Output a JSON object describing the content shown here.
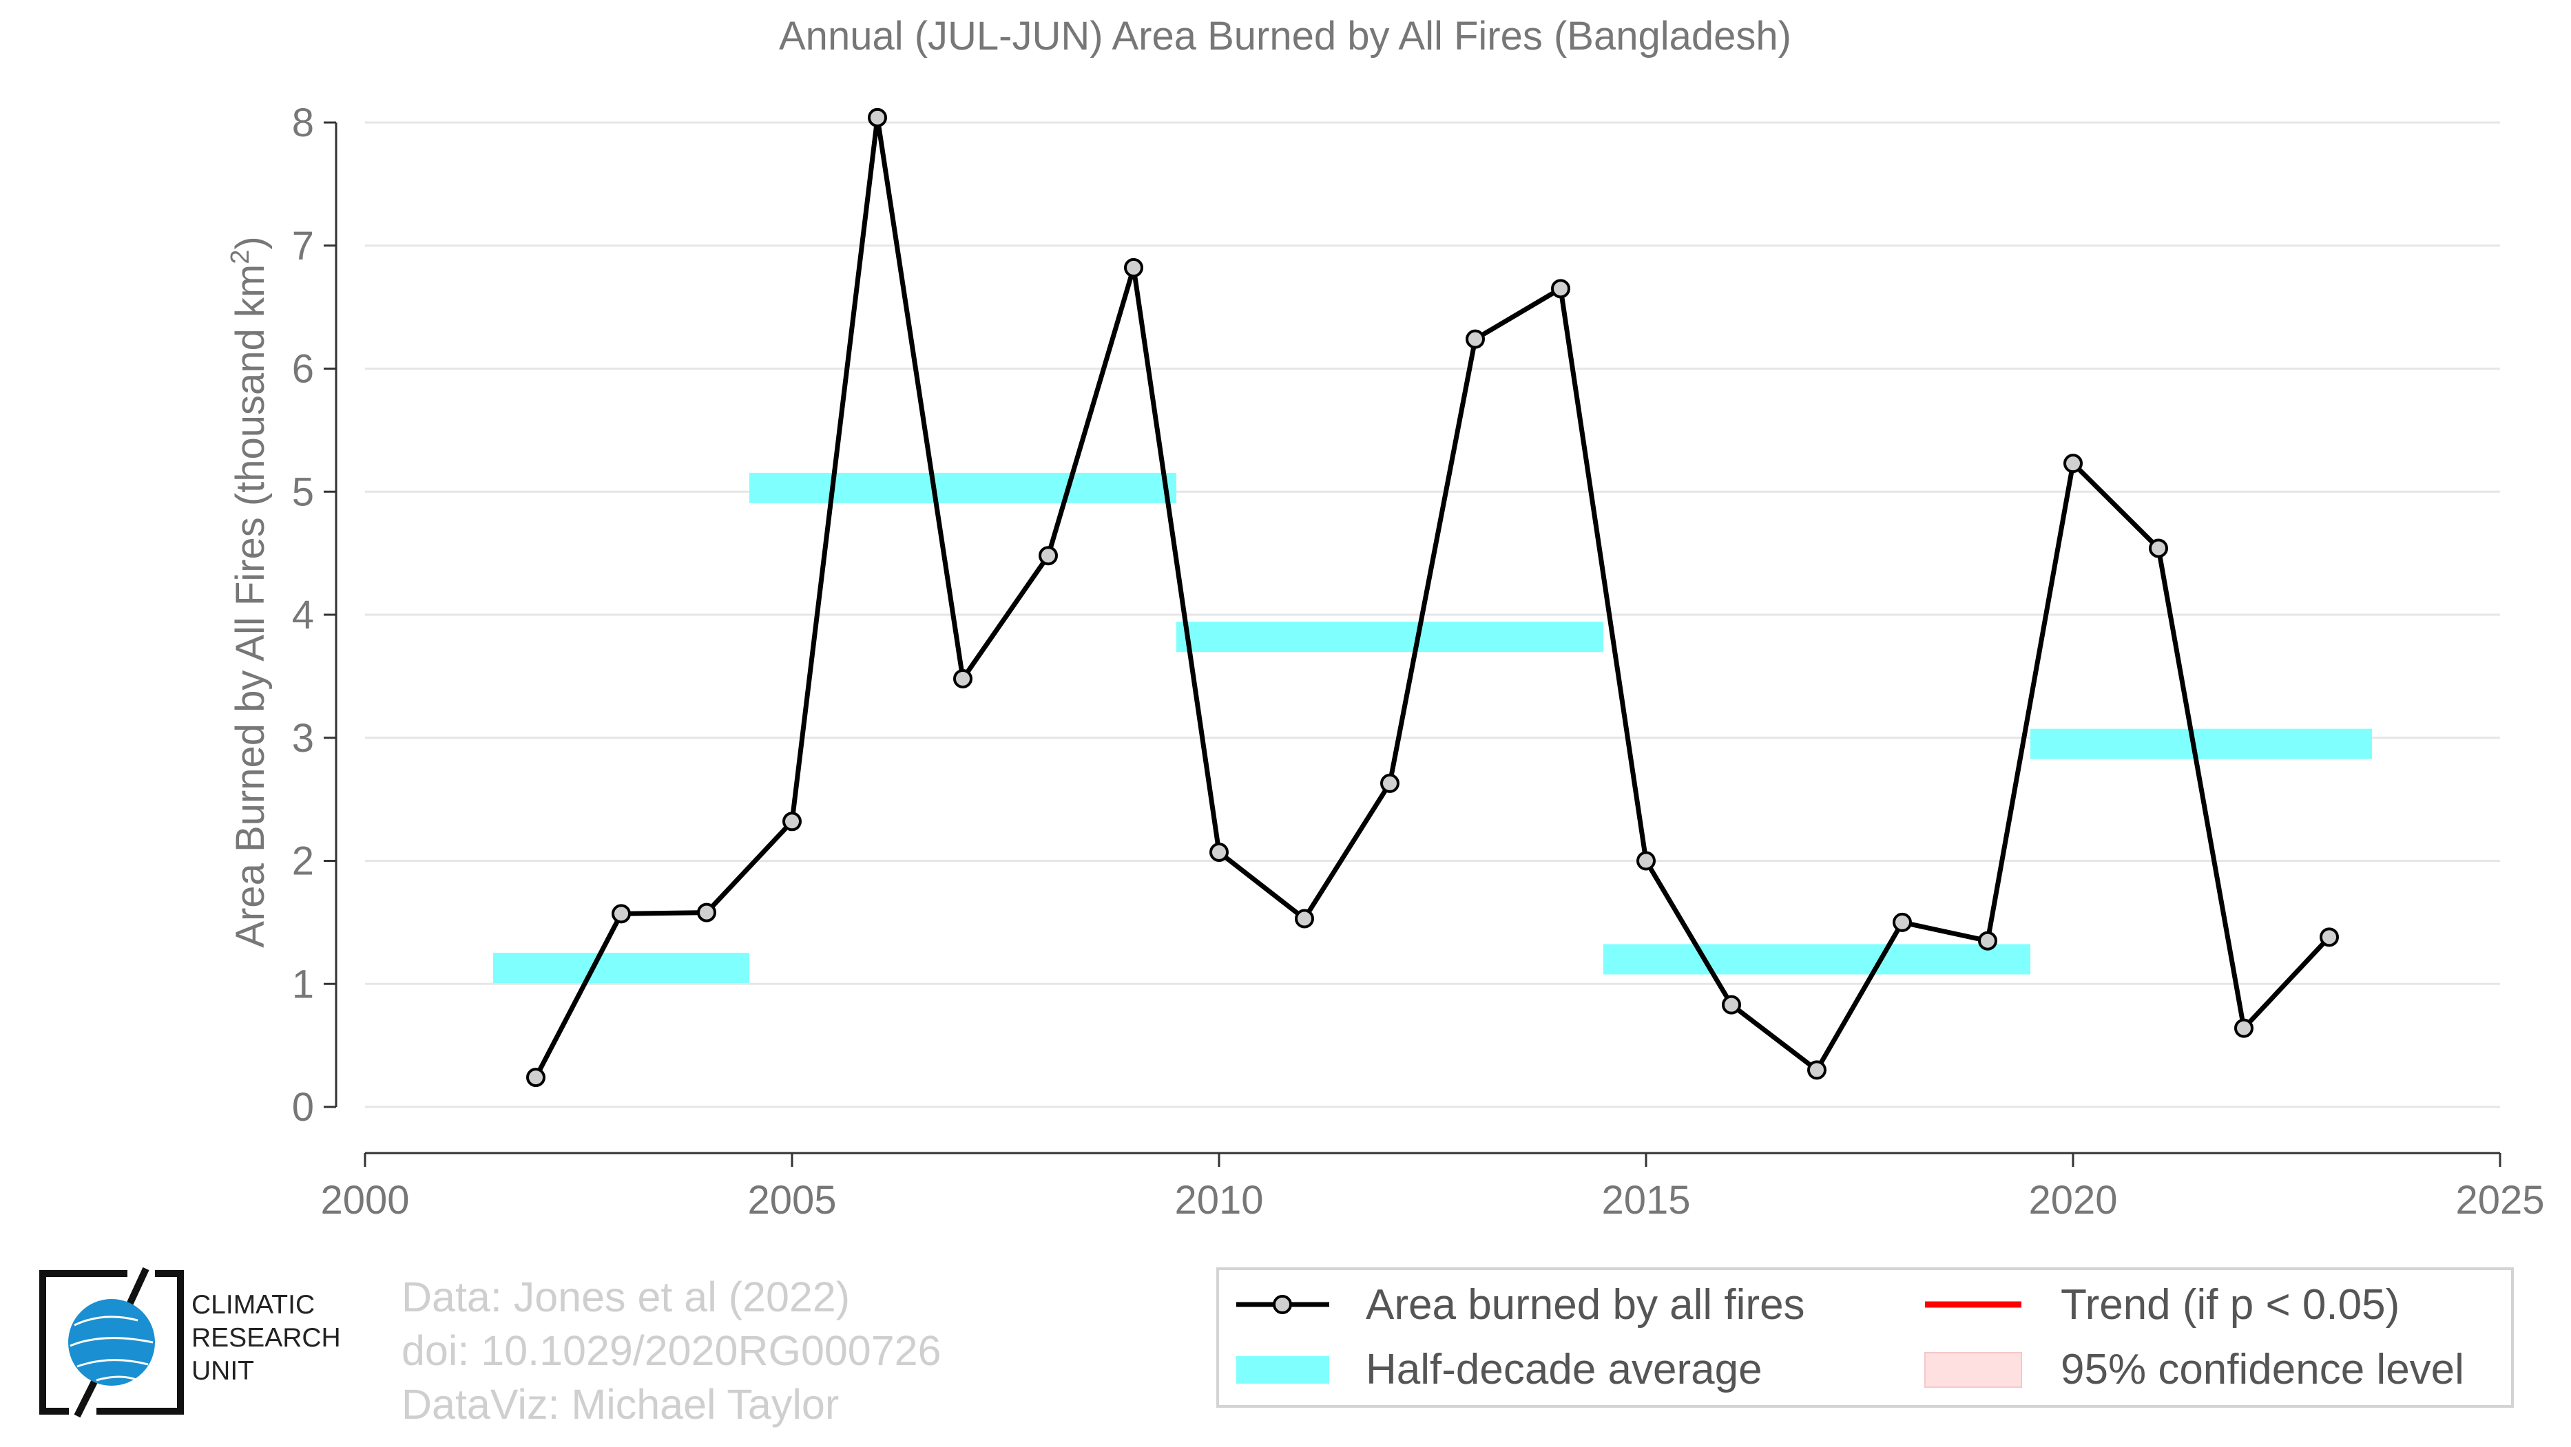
{
  "chart_data": {
    "type": "line",
    "title": "Annual (JUL-JUN) Area Burned by All Fires (Bangladesh)",
    "xlabel": "",
    "ylabel": "Area Burned by All Fires (thousand km",
    "ylabel_sup": "2",
    "ylabel_close": ")",
    "xlim": [
      2000,
      2025
    ],
    "ylim": [
      0,
      8
    ],
    "xticks": [
      2000,
      2005,
      2010,
      2015,
      2020,
      2025
    ],
    "yticks": [
      0,
      1,
      2,
      3,
      4,
      5,
      6,
      7,
      8
    ],
    "grid": true,
    "series": [
      {
        "name": "Area burned by all fires",
        "color": "#000000",
        "x": [
          2002,
          2003,
          2004,
          2005,
          2006,
          2007,
          2008,
          2009,
          2010,
          2011,
          2012,
          2013,
          2014,
          2015,
          2016,
          2017,
          2018,
          2019,
          2020,
          2021,
          2022,
          2023
        ],
        "y": [
          0.24,
          1.57,
          1.58,
          2.32,
          8.04,
          3.48,
          4.48,
          6.82,
          2.07,
          1.53,
          2.63,
          6.24,
          6.65,
          2.0,
          0.83,
          0.3,
          1.5,
          1.35,
          5.23,
          4.54,
          0.64,
          1.38
        ]
      }
    ],
    "half_decade_averages": {
      "name": "Half-decade average",
      "color": "#80ffff",
      "segments": [
        {
          "x_start": 2001.5,
          "x_end": 2004.5,
          "value": 1.13
        },
        {
          "x_start": 2004.5,
          "x_end": 2009.5,
          "value": 5.03
        },
        {
          "x_start": 2009.5,
          "x_end": 2014.5,
          "value": 3.82
        },
        {
          "x_start": 2014.5,
          "x_end": 2019.5,
          "value": 1.2
        },
        {
          "x_start": 2019.5,
          "x_end": 2023.5,
          "value": 2.95
        }
      ]
    },
    "legend": {
      "placement": "bottom-right",
      "entries": [
        {
          "label": "Area burned by all fires",
          "color": "#000000",
          "kind": "line-marker"
        },
        {
          "label": "Trend (if p < 0.05)",
          "color": "#ff0000",
          "kind": "line"
        },
        {
          "label": "Half-decade average",
          "color": "#80ffff",
          "kind": "band"
        },
        {
          "label": "95% confidence level",
          "color": "#ffe0e0",
          "kind": "box"
        }
      ]
    }
  },
  "credits": {
    "line1": "Data: Jones et al (2022)",
    "line2": "doi: 10.1029/2020RG000726",
    "line3": "DataViz: Michael Taylor"
  },
  "logo": {
    "line1": "CLIMATIC",
    "line2": "RESEARCH",
    "line3": "UNIT",
    "color": "#1a8fd1"
  }
}
